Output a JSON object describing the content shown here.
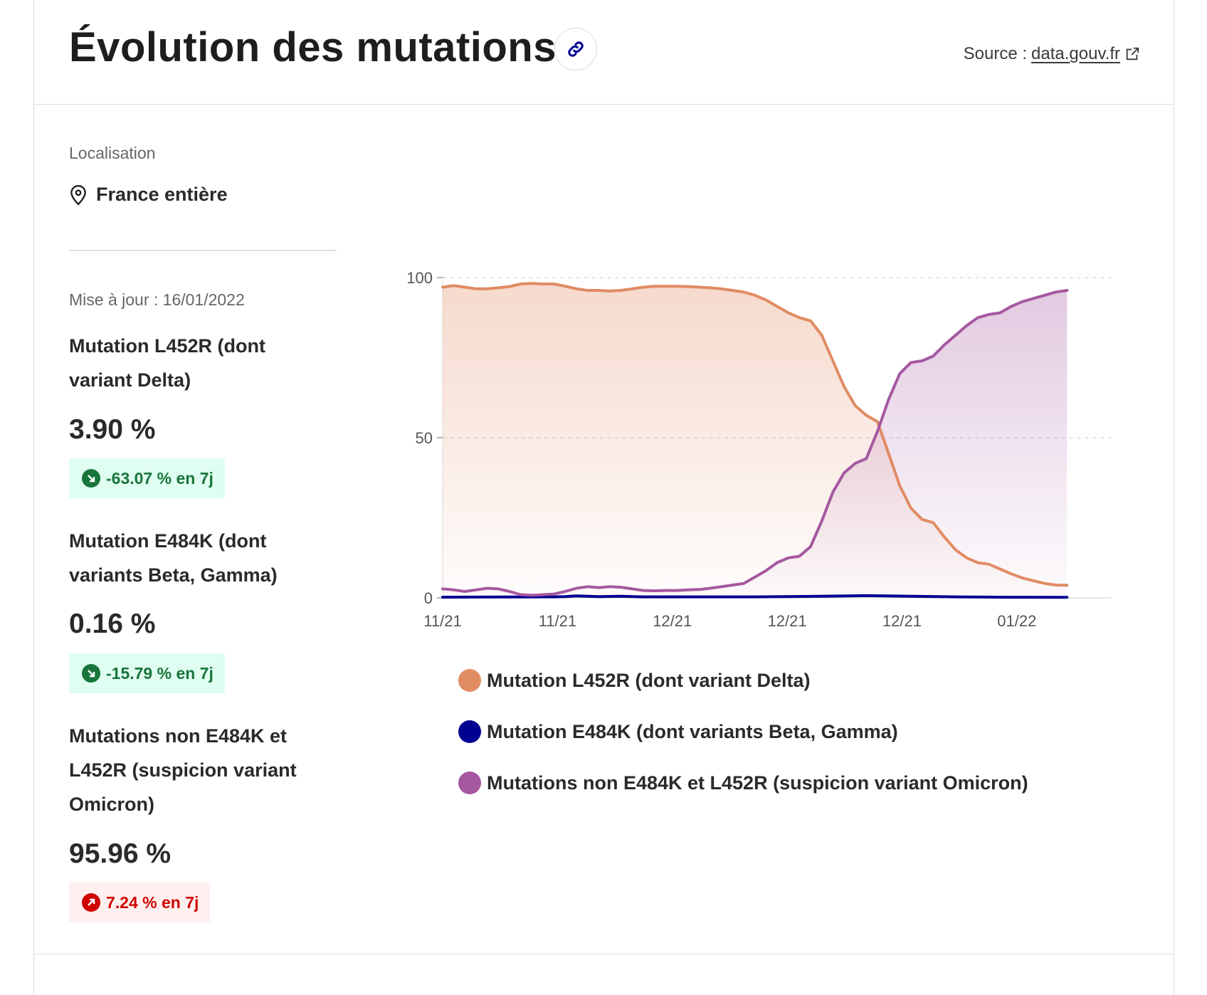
{
  "header": {
    "title": "Évolution des mutations",
    "source_prefix": "Source :",
    "source_link": "data.gouv.fr"
  },
  "sidebar": {
    "location_label": "Localisation",
    "location_value": "France entière",
    "updated": "Mise à jour : 16/01/2022",
    "metrics": [
      {
        "name": "Mutation L452R (dont variant Delta)",
        "value": "3.90 %",
        "change": "-63.07 % en 7j",
        "trend": "down"
      },
      {
        "name": "Mutation E484K (dont variants Beta, Gamma)",
        "value": "0.16 %",
        "change": "-15.79 % en 7j",
        "trend": "down"
      },
      {
        "name": "Mutations non E484K et L452R (suspicion variant Omicron)",
        "value": "95.96 %",
        "change": "7.24 % en 7j",
        "trend": "up"
      }
    ]
  },
  "colors": {
    "delta": "#e18b63",
    "beta_gamma": "#000091",
    "omicron": "#a558a0",
    "down": "#18753c",
    "up": "#ce0500"
  },
  "chart_data": {
    "type": "area",
    "ylim": [
      0,
      100
    ],
    "yticks": [
      0,
      50,
      100
    ],
    "xlim": [
      0,
      60
    ],
    "xticks": [
      {
        "x": 0,
        "label": "11/21"
      },
      {
        "x": 10.3,
        "label": "11/21"
      },
      {
        "x": 20.6,
        "label": "12/21"
      },
      {
        "x": 30.9,
        "label": "12/21"
      },
      {
        "x": 41.2,
        "label": "12/21"
      },
      {
        "x": 51.5,
        "label": "01/22"
      }
    ],
    "grid": true,
    "legend_position": "bottom",
    "series": [
      {
        "name": "Mutation L452R (dont variant Delta)",
        "color": "#e18b63",
        "filled": true,
        "points": [
          [
            0,
            97
          ],
          [
            1,
            97.5
          ],
          [
            2,
            97
          ],
          [
            3,
            96.5
          ],
          [
            4,
            96.5
          ],
          [
            5,
            96.8
          ],
          [
            6,
            97.2
          ],
          [
            7,
            98
          ],
          [
            8,
            98.2
          ],
          [
            9,
            98
          ],
          [
            10,
            98
          ],
          [
            11,
            97.3
          ],
          [
            12,
            96.5
          ],
          [
            13,
            96
          ],
          [
            14,
            96
          ],
          [
            15,
            95.8
          ],
          [
            16,
            96
          ],
          [
            17,
            96.5
          ],
          [
            18,
            97
          ],
          [
            19,
            97.3
          ],
          [
            20,
            97.3
          ],
          [
            21,
            97.3
          ],
          [
            22,
            97.2
          ],
          [
            23,
            97
          ],
          [
            24,
            96.8
          ],
          [
            25,
            96.5
          ],
          [
            26,
            96
          ],
          [
            27,
            95.5
          ],
          [
            28,
            94.5
          ],
          [
            29,
            93
          ],
          [
            30,
            91
          ],
          [
            31,
            89
          ],
          [
            32,
            87.5
          ],
          [
            33,
            86.5
          ],
          [
            34,
            82
          ],
          [
            35,
            74
          ],
          [
            36,
            66
          ],
          [
            37,
            60
          ],
          [
            38,
            57
          ],
          [
            39,
            55
          ],
          [
            40,
            45
          ],
          [
            41,
            35
          ],
          [
            42,
            28
          ],
          [
            43,
            24.5
          ],
          [
            44,
            23.5
          ],
          [
            45,
            19
          ],
          [
            46,
            15
          ],
          [
            47,
            12.5
          ],
          [
            48,
            11
          ],
          [
            49,
            10.5
          ],
          [
            50,
            9
          ],
          [
            51,
            7.5
          ],
          [
            52,
            6.2
          ],
          [
            53,
            5.3
          ],
          [
            54,
            4.5
          ],
          [
            55,
            4
          ],
          [
            56,
            3.9
          ]
        ]
      },
      {
        "name": "Mutation E484K (dont variants Beta, Gamma)",
        "color": "#000091",
        "filled": false,
        "points": [
          [
            0,
            0.2
          ],
          [
            10,
            0.3
          ],
          [
            11,
            0.4
          ],
          [
            12,
            0.6
          ],
          [
            14,
            0.4
          ],
          [
            16,
            0.5
          ],
          [
            18,
            0.3
          ],
          [
            22,
            0.3
          ],
          [
            28,
            0.3
          ],
          [
            34,
            0.5
          ],
          [
            38,
            0.7
          ],
          [
            42,
            0.5
          ],
          [
            46,
            0.3
          ],
          [
            50,
            0.2
          ],
          [
            56,
            0.16
          ]
        ]
      },
      {
        "name": "Mutations non E484K et L452R (suspicion variant Omicron)",
        "color": "#a558a0",
        "filled": true,
        "points": [
          [
            0,
            2.8
          ],
          [
            1,
            2.5
          ],
          [
            2,
            2
          ],
          [
            3,
            2.5
          ],
          [
            4,
            3
          ],
          [
            5,
            2.8
          ],
          [
            6,
            2
          ],
          [
            7,
            1
          ],
          [
            8,
            0.8
          ],
          [
            9,
            1
          ],
          [
            10,
            1.2
          ],
          [
            11,
            2
          ],
          [
            12,
            3
          ],
          [
            13,
            3.5
          ],
          [
            14,
            3.2
          ],
          [
            15,
            3.5
          ],
          [
            16,
            3.3
          ],
          [
            17,
            2.8
          ],
          [
            18,
            2.3
          ],
          [
            19,
            2.2
          ],
          [
            20,
            2.3
          ],
          [
            21,
            2.3
          ],
          [
            22,
            2.5
          ],
          [
            23,
            2.6
          ],
          [
            24,
            3
          ],
          [
            25,
            3.5
          ],
          [
            26,
            4
          ],
          [
            27,
            4.5
          ],
          [
            28,
            6.5
          ],
          [
            29,
            8.5
          ],
          [
            30,
            11
          ],
          [
            31,
            12.5
          ],
          [
            32,
            13
          ],
          [
            33,
            16
          ],
          [
            34,
            24
          ],
          [
            35,
            33
          ],
          [
            36,
            39
          ],
          [
            37,
            42
          ],
          [
            38,
            43.5
          ],
          [
            39,
            52
          ],
          [
            40,
            62
          ],
          [
            41,
            70
          ],
          [
            42,
            73.5
          ],
          [
            43,
            74
          ],
          [
            44,
            75.5
          ],
          [
            45,
            79
          ],
          [
            46,
            82
          ],
          [
            47,
            85
          ],
          [
            48,
            87.5
          ],
          [
            49,
            88.5
          ],
          [
            50,
            89
          ],
          [
            51,
            91
          ],
          [
            52,
            92.5
          ],
          [
            53,
            93.5
          ],
          [
            54,
            94.5
          ],
          [
            55,
            95.5
          ],
          [
            56,
            96
          ]
        ]
      }
    ]
  }
}
